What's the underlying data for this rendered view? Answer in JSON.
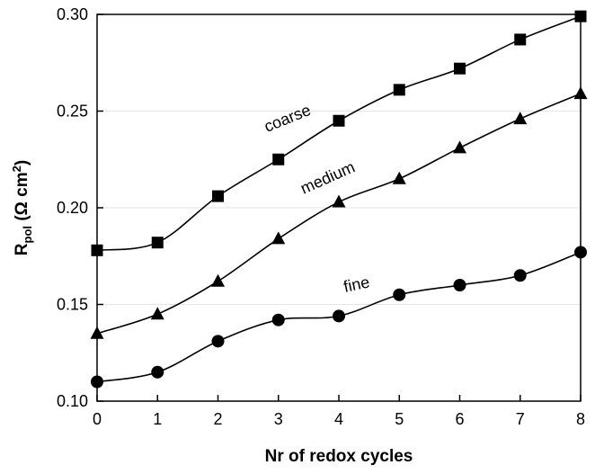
{
  "chart_data": {
    "type": "line",
    "x": [
      0,
      1,
      2,
      3,
      4,
      5,
      6,
      7,
      8
    ],
    "xlim": [
      0,
      8
    ],
    "ylim": [
      0.1,
      0.3
    ],
    "x_ticks": [
      "0",
      "1",
      "2",
      "3",
      "4",
      "5",
      "6",
      "7",
      "8"
    ],
    "y_ticks": [
      "0.10",
      "0.15",
      "0.20",
      "0.25",
      "0.30"
    ],
    "xlabel": "Nr of redox cycles",
    "ylabel": {
      "main": "R",
      "sub": "pol",
      "units_start": " (Ω cm",
      "sup": "2",
      "units_end": ")"
    },
    "grid": "horizontal",
    "series": [
      {
        "name": "coarse",
        "marker": "square",
        "values": [
          0.178,
          0.182,
          0.206,
          0.225,
          0.245,
          0.261,
          0.272,
          0.287,
          0.299
        ]
      },
      {
        "name": "medium",
        "marker": "triangle",
        "values": [
          0.135,
          0.145,
          0.162,
          0.184,
          0.203,
          0.215,
          0.231,
          0.246,
          0.259
        ]
      },
      {
        "name": "fine",
        "marker": "circle",
        "values": [
          0.11,
          0.115,
          0.131,
          0.142,
          0.144,
          0.155,
          0.16,
          0.165,
          0.177
        ]
      }
    ],
    "colors": {
      "line": "#000000",
      "marker": "#000000",
      "grid": "#e6e6e6"
    }
  }
}
